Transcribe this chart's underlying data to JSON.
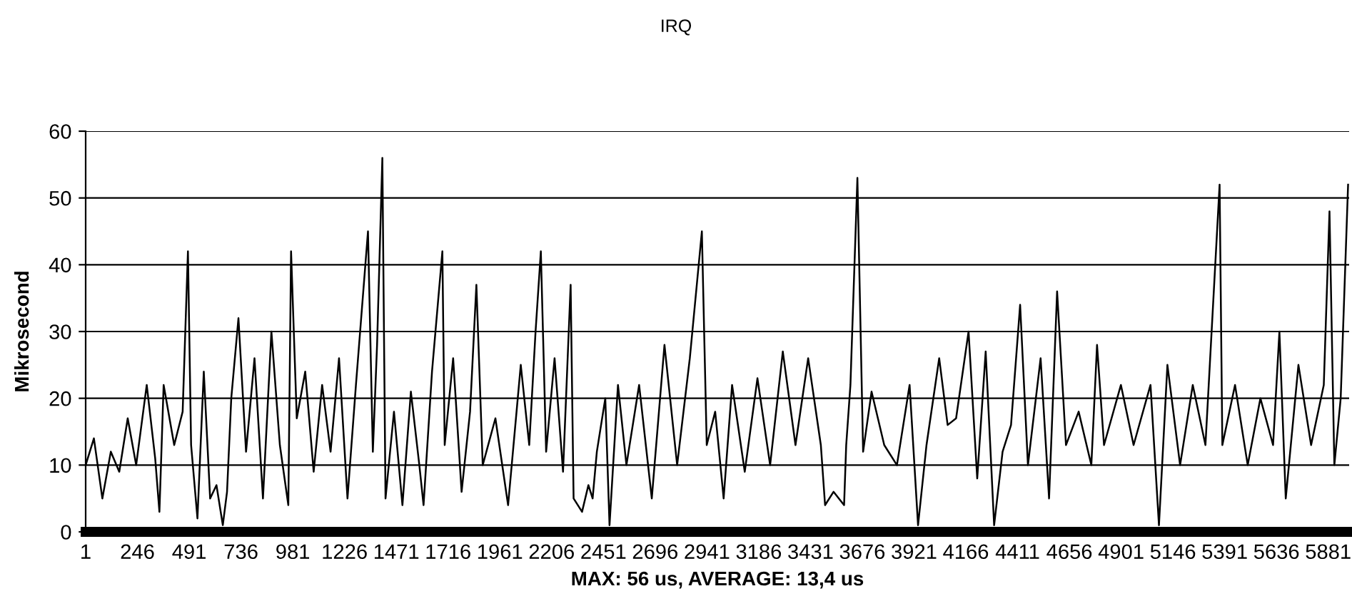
{
  "chart_data": {
    "type": "line",
    "title": "IRQ",
    "xlabel": "MAX: 56 us, AVERAGE: 13,4 us",
    "ylabel": "Mikrosecond",
    "x": [
      1,
      40,
      80,
      120,
      160,
      200,
      240,
      290,
      330,
      350,
      370,
      420,
      460,
      485,
      500,
      530,
      560,
      590,
      620,
      650,
      670,
      690,
      724,
      760,
      800,
      840,
      880,
      920,
      960,
      973,
      1000,
      1040,
      1080,
      1120,
      1160,
      1200,
      1240,
      1280,
      1337,
      1360,
      1380,
      1405,
      1420,
      1460,
      1500,
      1540,
      1580,
      1600,
      1640,
      1689,
      1700,
      1740,
      1780,
      1820,
      1850,
      1880,
      1940,
      2000,
      2060,
      2100,
      2130,
      2155,
      2180,
      2220,
      2260,
      2296,
      2310,
      2350,
      2380,
      2400,
      2420,
      2460,
      2480,
      2520,
      2560,
      2620,
      2680,
      2740,
      2800,
      2860,
      2917,
      2940,
      2980,
      3020,
      3060,
      3120,
      3180,
      3240,
      3300,
      3360,
      3420,
      3480,
      3500,
      3540,
      3590,
      3600,
      3620,
      3653,
      3680,
      3720,
      3780,
      3840,
      3900,
      3940,
      3980,
      4040,
      4080,
      4120,
      4179,
      4220,
      4260,
      4300,
      4340,
      4380,
      4423,
      4460,
      4520,
      4560,
      4598,
      4640,
      4700,
      4760,
      4787,
      4820,
      4900,
      4960,
      5040,
      5080,
      5120,
      5180,
      5240,
      5300,
      5367,
      5380,
      5440,
      5500,
      5560,
      5620,
      5650,
      5680,
      5740,
      5800,
      5860,
      5887,
      5910,
      5940,
      5975
    ],
    "series": [
      {
        "color": "#000000",
        "values": [
          10,
          14,
          5,
          12,
          9,
          17,
          10,
          22,
          11,
          3,
          22,
          13,
          18,
          42,
          13,
          2,
          24,
          5,
          7,
          1,
          6,
          20,
          32,
          12,
          26,
          5,
          30,
          13,
          4,
          42,
          17,
          24,
          9,
          22,
          12,
          26,
          5,
          22,
          45,
          12,
          28,
          56,
          5,
          18,
          4,
          21,
          10,
          4,
          24,
          42,
          13,
          26,
          6,
          18,
          37,
          10,
          17,
          4,
          25,
          13,
          30,
          42,
          12,
          26,
          9,
          37,
          5,
          3,
          7,
          5,
          12,
          20,
          1,
          22,
          10,
          22,
          5,
          28,
          10,
          26,
          45,
          13,
          18,
          5,
          22,
          9,
          23,
          10,
          27,
          13,
          26,
          13,
          4,
          6,
          4,
          13,
          22,
          53,
          12,
          21,
          13,
          10,
          22,
          1,
          13,
          26,
          16,
          17,
          30,
          8,
          27,
          1,
          12,
          16,
          34,
          10,
          26,
          5,
          36,
          13,
          18,
          10,
          28,
          13,
          22,
          13,
          22,
          1,
          25,
          10,
          22,
          13,
          52,
          13,
          22,
          10,
          20,
          13,
          30,
          5,
          25,
          13,
          22,
          48,
          10,
          20,
          52
        ]
      }
    ],
    "xlim": [
      1,
      5980
    ],
    "xticks": [
      1,
      246,
      491,
      736,
      981,
      1226,
      1471,
      1716,
      1961,
      2206,
      2451,
      2696,
      2941,
      3186,
      3431,
      3676,
      3921,
      4166,
      4411,
      4656,
      4901,
      5146,
      5391,
      5636,
      5881
    ],
    "ylim": [
      0,
      60
    ],
    "yticks": [
      0,
      10,
      20,
      30,
      40,
      50,
      60
    ],
    "grid": "y",
    "legend": false,
    "marker": "none",
    "line_style": "solid"
  }
}
